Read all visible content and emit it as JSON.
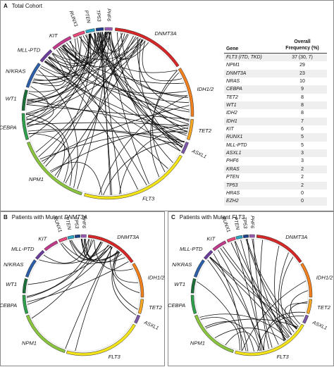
{
  "panels": {
    "a": {
      "letter": "A",
      "title": "Total Cohort"
    },
    "b": {
      "letter": "B",
      "title": "Patients with Mutant",
      "gene": "DNMT3A"
    },
    "c": {
      "letter": "C",
      "title": "Patients with Mutant",
      "gene": "FLT3"
    }
  },
  "genes": [
    {
      "label": "DNMT3A",
      "color": "#d62728"
    },
    {
      "label": "IDH1/2",
      "color": "#f07f1e"
    },
    {
      "label": "TET2",
      "color": "#f5a623"
    },
    {
      "label": "ASXL1",
      "color": "#7a55a8"
    },
    {
      "label": "FLT3",
      "color": "#f2e21a"
    },
    {
      "label": "NPM1",
      "color": "#8ac43f"
    },
    {
      "label": "CEBPA",
      "color": "#2e9f4a"
    },
    {
      "label": "WT1",
      "color": "#1d6f3a"
    },
    {
      "label": "N/KRAS",
      "color": "#2d5fa8"
    },
    {
      "label": "MLL-PTD",
      "color": "#6a3d9a"
    },
    {
      "label": "KIT",
      "color": "#c0398b"
    },
    {
      "label": "RUNX1",
      "color": "#e8487a"
    },
    {
      "label": "PTEN",
      "color": "#2aa6c9"
    },
    {
      "label": "TP53",
      "color": "#1b3f8b"
    },
    {
      "label": "PHF6",
      "color": "#9b59b6"
    }
  ],
  "table": {
    "header_gene": "Gene",
    "header_freq_line1": "Overall",
    "header_freq_line2": "Frequency (%)",
    "rows": [
      {
        "gene": "FLT3 (ITD, TKD)",
        "freq": "37 (30, 7)"
      },
      {
        "gene": "NPM1",
        "freq": "29"
      },
      {
        "gene": "DNMT3A",
        "freq": "23"
      },
      {
        "gene": "NRAS",
        "freq": "10"
      },
      {
        "gene": "CEBPA",
        "freq": "9"
      },
      {
        "gene": "TET2",
        "freq": "8"
      },
      {
        "gene": "WT1",
        "freq": "8"
      },
      {
        "gene": "IDH2",
        "freq": "8"
      },
      {
        "gene": "IDH1",
        "freq": "7"
      },
      {
        "gene": "KIT",
        "freq": "6"
      },
      {
        "gene": "RUNX1",
        "freq": "5"
      },
      {
        "gene": "MLL-PTD",
        "freq": "5"
      },
      {
        "gene": "ASXL1",
        "freq": "3"
      },
      {
        "gene": "PHF6",
        "freq": "3"
      },
      {
        "gene": "KRAS",
        "freq": "2"
      },
      {
        "gene": "PTEN",
        "freq": "2"
      },
      {
        "gene": "TP53",
        "freq": "2"
      },
      {
        "gene": "HRAS",
        "freq": "0"
      },
      {
        "gene": "EZH2",
        "freq": "0"
      }
    ]
  }
}
